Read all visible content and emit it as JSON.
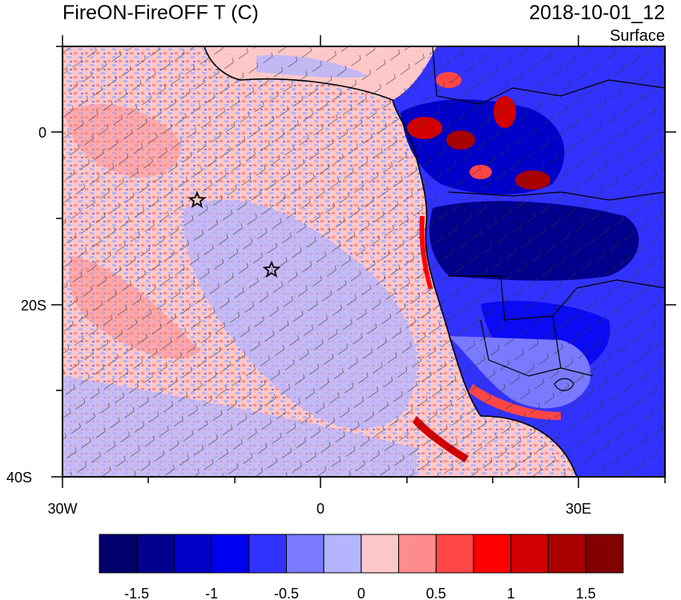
{
  "title": "FireON-FireOFF T (C)",
  "datetime": "2018-10-01_12",
  "level": "Surface",
  "map": {
    "x_tick_labels": [
      "30W",
      "0",
      "30E"
    ],
    "y_tick_labels": [
      "0",
      "20S",
      "40S"
    ],
    "lon_range": [
      -30,
      40
    ],
    "lat_range": [
      -40,
      10
    ]
  },
  "colorbar": {
    "labels": [
      "-1.5",
      "-1",
      "-0.5",
      "0",
      "0.5",
      "1",
      "1.5"
    ],
    "colors": [
      "#00006e",
      "#00008c",
      "#0000c8",
      "#0000f0",
      "#3232ff",
      "#7a7aff",
      "#b4b4ff",
      "#ffc8c8",
      "#ff8c8c",
      "#ff4646",
      "#ff0000",
      "#d20000",
      "#aa0000",
      "#820000"
    ]
  },
  "markers": [
    {
      "name": "star",
      "lon": -14.5,
      "lat": -8.0
    },
    {
      "name": "star",
      "lon": -5.8,
      "lat": -16.0
    }
  ]
}
